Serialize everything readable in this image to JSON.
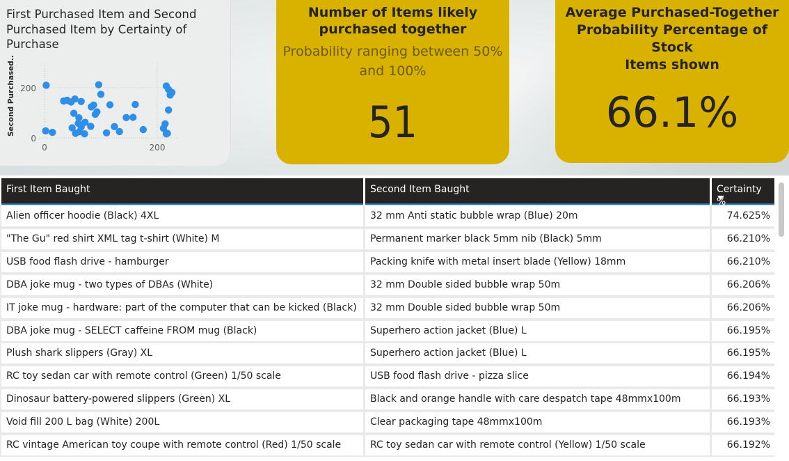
{
  "scatter": {
    "title": "First Purchased Item and Second Purchased Item by Certainty of Purchase",
    "ylabel": "Second Purchased...",
    "yticks": [
      "200",
      "0"
    ],
    "xticks": [
      "0",
      "200"
    ],
    "point_color": "#2f8fe8"
  },
  "chart_data": {
    "type": "scatter",
    "title": "First Purchased Item and Second Purchased Item by Certainty of Purchase",
    "xlabel": "",
    "ylabel": "Second Purchased...",
    "xlim": [
      -10,
      235
    ],
    "ylim": [
      0,
      240
    ],
    "grid": true,
    "series": [
      {
        "x": [
          3,
          2,
          14,
          34,
          40,
          47,
          49,
          52,
          54,
          55,
          60,
          61,
          62,
          65,
          65,
          71,
          72,
          82,
          83,
          87,
          90,
          93,
          96,
          100,
          110,
          116,
          124,
          133,
          145,
          157,
          161,
          175,
          211,
          214,
          216,
          216,
          218,
          220,
          220,
          223,
          226
        ],
        "y": [
          210,
          28,
          22,
          147,
          150,
          143,
          40,
          98,
          155,
          18,
          58,
          80,
          25,
          145,
          44,
          16,
          62,
          46,
          124,
          131,
          94,
          104,
          212,
          174,
          20,
          132,
          45,
          25,
          81,
          82,
          133,
          33,
          38,
          56,
          16,
          207,
          18,
          193,
          111,
          171,
          181
        ]
      }
    ]
  },
  "kpi1": {
    "title_line1": "Number of Items likely",
    "title_line2": "purchased together",
    "subtitle_line1": "Probability ranging between 50%",
    "subtitle_line2": "and 100%",
    "value": "51"
  },
  "kpi2": {
    "title_line1": "Average Purchased-Together",
    "title_line2": "Probability Percentage of Stock",
    "title_line3": "Items shown",
    "value": "66.1%"
  },
  "table": {
    "headers": [
      "First Item Baught",
      "Second Item Baught",
      "Certainty %"
    ],
    "rows": [
      [
        "Alien officer hoodie (Black) 4XL",
        "32 mm Anti static bubble wrap (Blue) 20m",
        "74.625%"
      ],
      [
        "\"The Gu\" red shirt XML tag t-shirt (White) M",
        "Permanent marker black 5mm nib (Black) 5mm",
        "66.210%"
      ],
      [
        "USB food flash drive - hamburger",
        "Packing knife with metal insert blade (Yellow) 18mm",
        "66.210%"
      ],
      [
        "DBA joke mug - two types of DBAs (White)",
        "32 mm Double sided bubble wrap 50m",
        "66.206%"
      ],
      [
        "IT joke mug - hardware: part of the computer that can be kicked (Black)",
        "32 mm Double sided bubble wrap 50m",
        "66.206%"
      ],
      [
        "DBA joke mug - SELECT caffeine FROM mug (Black)",
        "Superhero action jacket (Blue) L",
        "66.195%"
      ],
      [
        "Plush shark slippers (Gray) XL",
        "Superhero action jacket (Blue) L",
        "66.195%"
      ],
      [
        "RC toy sedan car with remote control (Green) 1/50 scale",
        "USB food flash drive - pizza slice",
        "66.194%"
      ],
      [
        "Dinosaur battery-powered slippers (Green) XL",
        "Black and orange handle with care despatch tape 48mmx100m",
        "66.193%"
      ],
      [
        "Void fill 200 L bag (White) 200L",
        "Clear packaging tape 48mmx100m",
        "66.193%"
      ],
      [
        "RC vintage American toy coupe with remote control (Red) 1/50 scale",
        "RC toy sedan car with remote control (Yellow) 1/50 scale",
        "66.192%"
      ]
    ]
  }
}
